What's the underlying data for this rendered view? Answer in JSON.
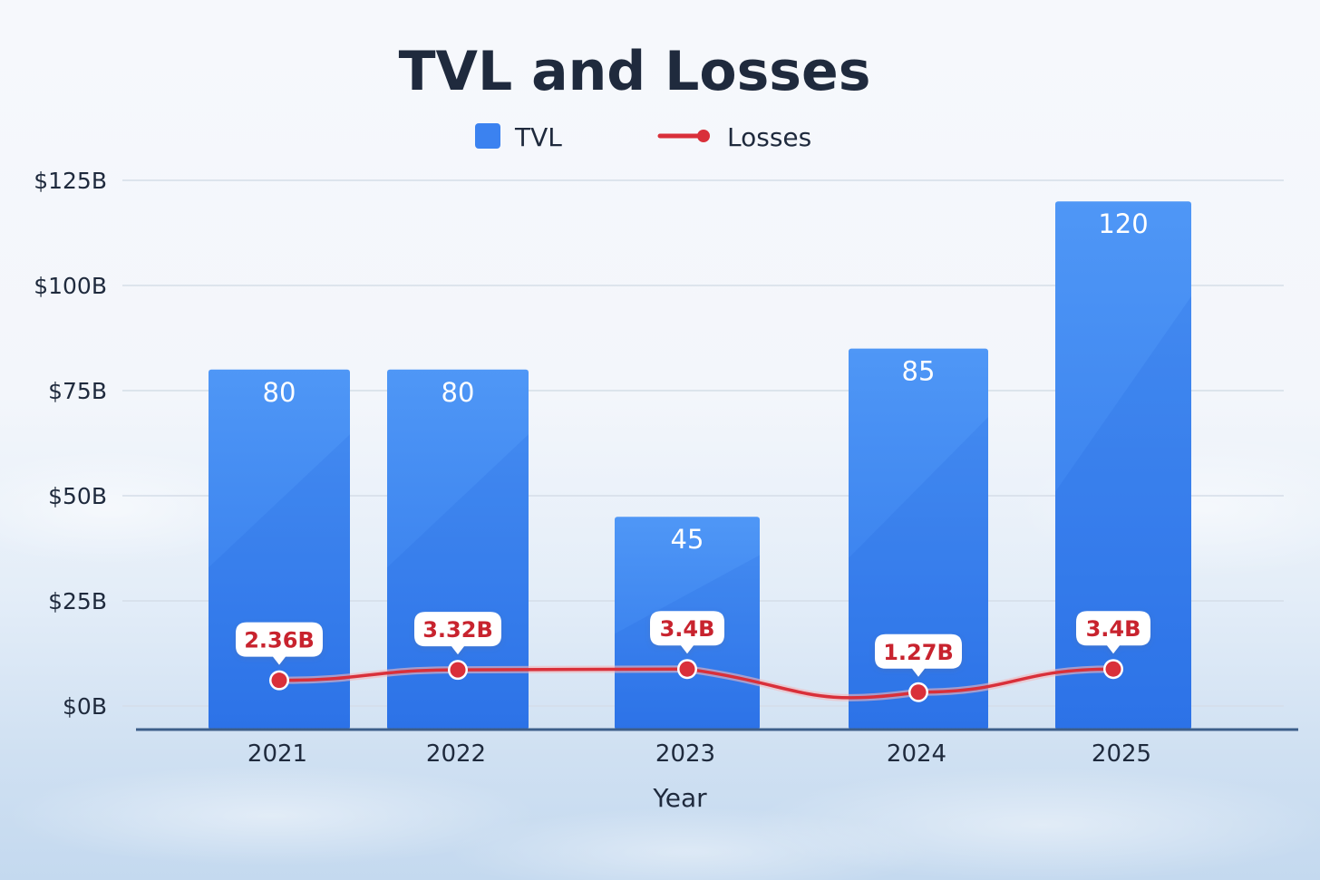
{
  "chart_data": {
    "type": "bar",
    "title": "TVL and Losses",
    "xlabel": "Year",
    "ylabel": "",
    "categories": [
      "2021",
      "2022",
      "2023",
      "2024",
      "2025"
    ],
    "ylim": [
      0,
      125
    ],
    "yticks": [
      {
        "value": 0,
        "label": "$0B"
      },
      {
        "value": 25,
        "label": "$25B"
      },
      {
        "value": 50,
        "label": "$50B"
      },
      {
        "value": 75,
        "label": "$75B"
      },
      {
        "value": 100,
        "label": "$100B"
      },
      {
        "value": 125,
        "label": "$125B"
      }
    ],
    "grid": true,
    "legend_position": "top-center",
    "series": [
      {
        "name": "TVL",
        "kind": "bar",
        "color": "#3b82f0",
        "values": [
          80,
          80,
          45,
          85,
          120
        ],
        "labels": [
          "80",
          "80",
          "45",
          "85",
          "120"
        ]
      },
      {
        "name": "Losses",
        "kind": "line",
        "color": "#d9303a",
        "values": [
          2.36,
          3.32,
          3.4,
          1.27,
          3.4
        ],
        "labels": [
          "2.36B",
          "3.32B",
          "3.4B",
          "1.27B",
          "3.4B"
        ]
      }
    ]
  }
}
